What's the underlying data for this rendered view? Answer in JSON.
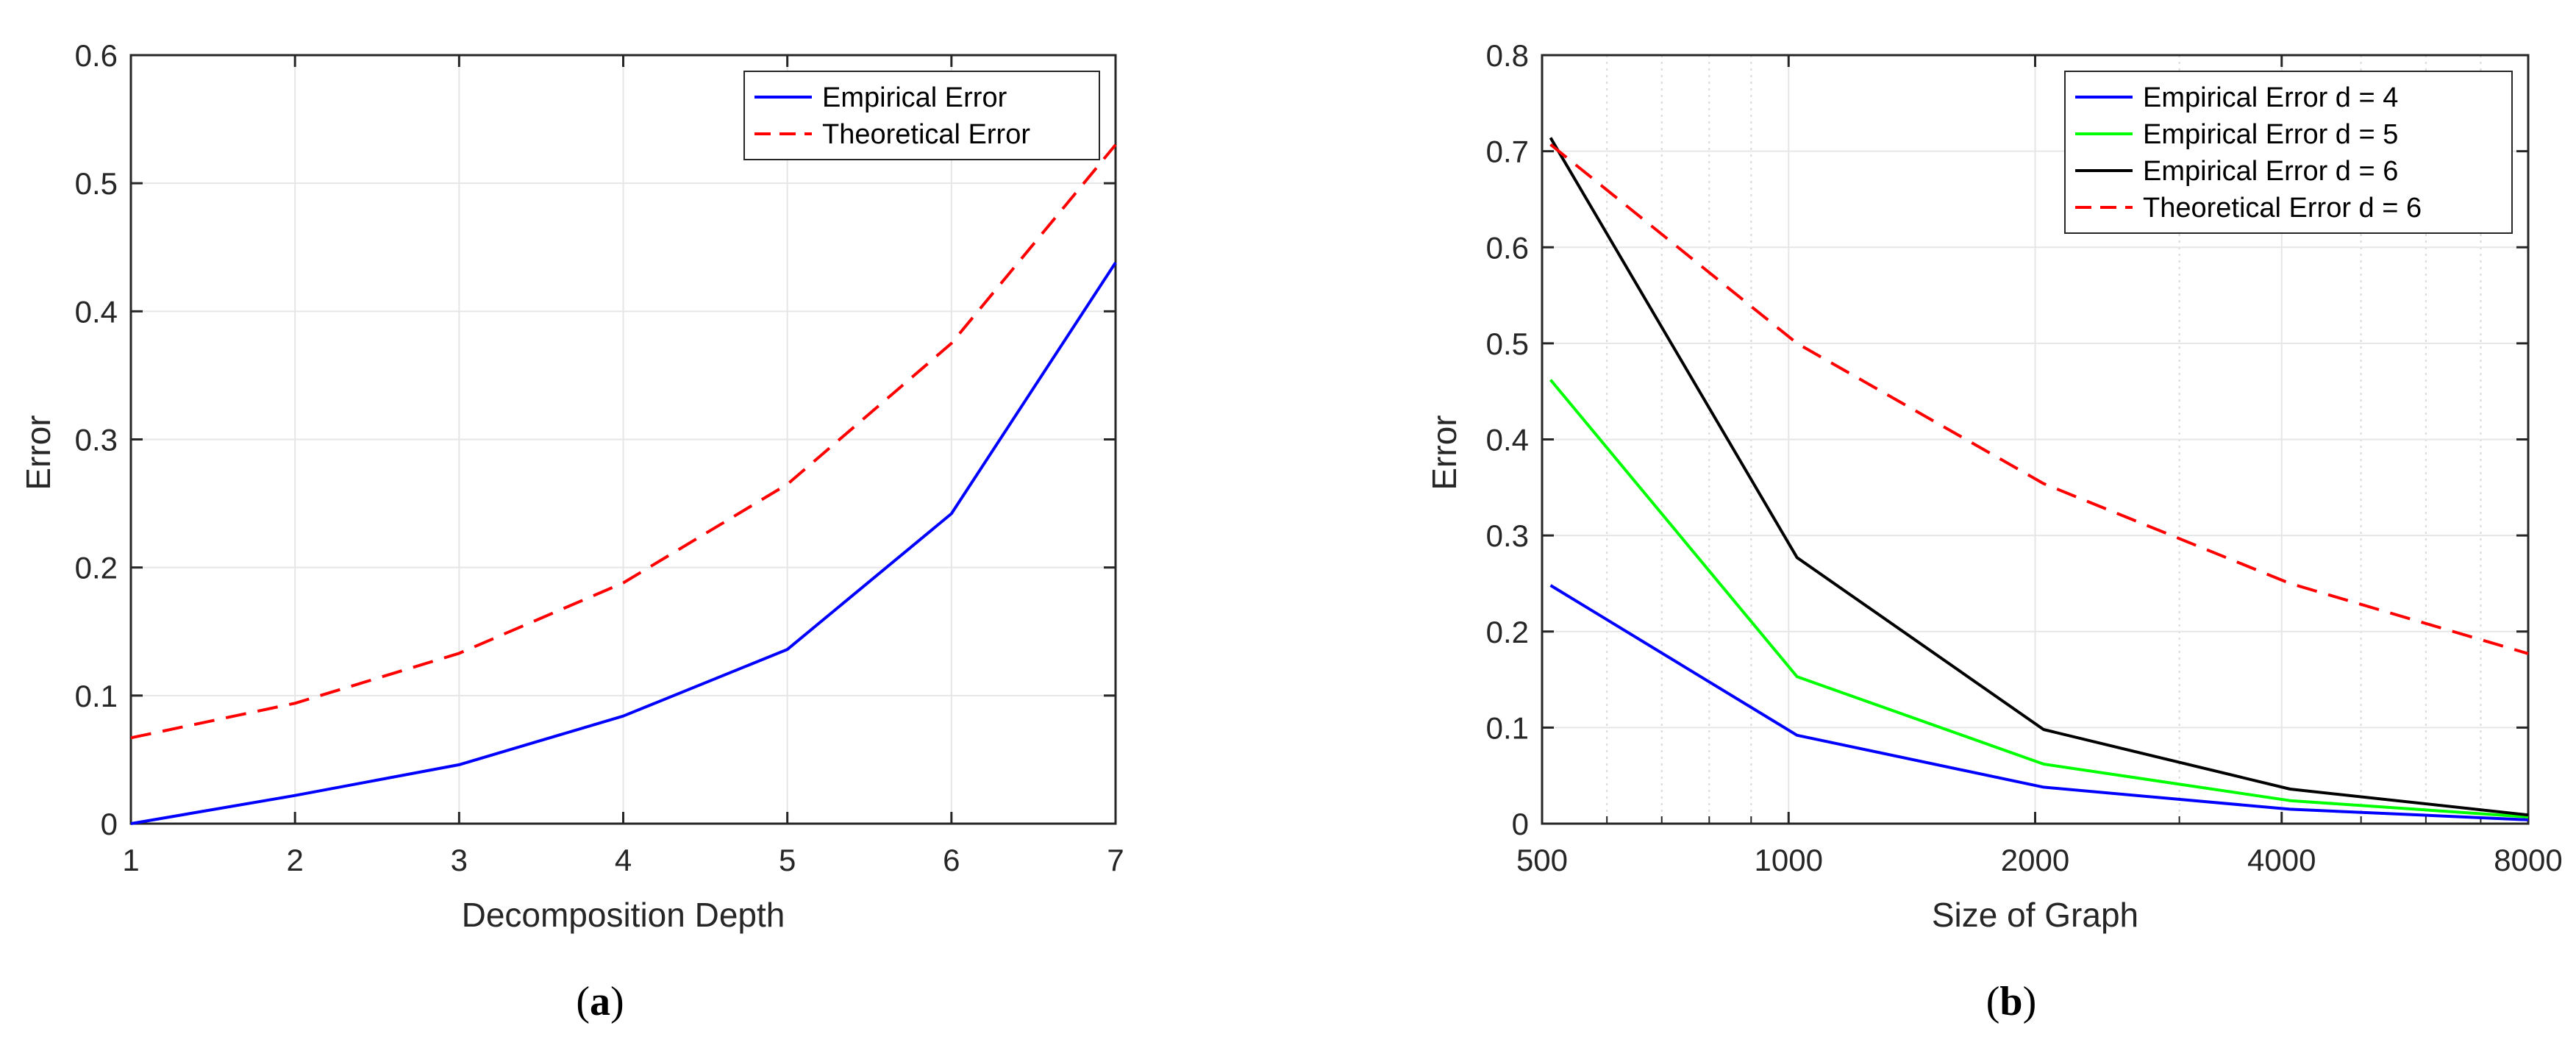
{
  "chart_data": [
    {
      "type": "line",
      "caption": {
        "open": "(",
        "letter": "a",
        "close": ")"
      },
      "xlabel": "Decomposition Depth",
      "ylabel": "Error",
      "xscale": "linear",
      "xlim": [
        1,
        7
      ],
      "ylim": [
        0,
        0.6
      ],
      "xticks": [
        1,
        2,
        3,
        4,
        5,
        6,
        7
      ],
      "xtick_labels": [
        "1",
        "2",
        "3",
        "4",
        "5",
        "6",
        "7"
      ],
      "yticks": [
        0,
        0.1,
        0.2,
        0.3,
        0.4,
        0.5,
        0.6
      ],
      "ytick_labels": [
        "0",
        "0.1",
        "0.2",
        "0.3",
        "0.4",
        "0.5",
        "0.6"
      ],
      "grid": true,
      "legend_position": "top-right",
      "series": [
        {
          "name": "Empirical Error",
          "color": "#0000ff",
          "dash": "solid",
          "x": [
            1,
            2,
            3,
            4,
            5,
            6,
            7
          ],
          "values": [
            0.0,
            0.022,
            0.046,
            0.084,
            0.136,
            0.242,
            0.438
          ]
        },
        {
          "name": "Theoretical Error",
          "color": "#ff0000",
          "dash": "dashed",
          "x": [
            1,
            2,
            3,
            4,
            5,
            6,
            7
          ],
          "values": [
            0.067,
            0.094,
            0.133,
            0.188,
            0.265,
            0.375,
            0.53
          ]
        }
      ]
    },
    {
      "type": "line",
      "caption": {
        "open": "(",
        "letter": "b",
        "close": ")"
      },
      "xlabel": "Size of Graph",
      "ylabel": "Error",
      "xscale": "log2",
      "xlim": [
        500,
        8000
      ],
      "ylim": [
        0,
        0.8
      ],
      "xticks": [
        500,
        1000,
        2000,
        4000,
        8000
      ],
      "xtick_labels": [
        "500",
        "1000",
        "2000",
        "4000",
        "8000"
      ],
      "minor_xticks": [
        600,
        700,
        800,
        900,
        3000,
        5000,
        6000,
        7000
      ],
      "yticks": [
        0,
        0.1,
        0.2,
        0.3,
        0.4,
        0.5,
        0.6,
        0.7,
        0.8
      ],
      "ytick_labels": [
        "0",
        "0.1",
        "0.2",
        "0.3",
        "0.4",
        "0.5",
        "0.6",
        "0.7",
        "0.8"
      ],
      "grid": true,
      "legend_position": "top-right",
      "series": [
        {
          "name": "Empirical Error d = 4",
          "color": "#0000ff",
          "dash": "solid",
          "x": [
            512,
            1024,
            2048,
            4096,
            8000
          ],
          "values": [
            0.248,
            0.092,
            0.038,
            0.015,
            0.004
          ]
        },
        {
          "name": "Empirical Error d = 5",
          "color": "#00ff00",
          "dash": "solid",
          "x": [
            512,
            1024,
            2048,
            4096,
            8000
          ],
          "values": [
            0.462,
            0.153,
            0.062,
            0.024,
            0.007
          ]
        },
        {
          "name": "Empirical Error d = 6",
          "color": "#000000",
          "dash": "solid",
          "x": [
            512,
            1024,
            2048,
            4096,
            8000
          ],
          "values": [
            0.714,
            0.277,
            0.098,
            0.036,
            0.009
          ]
        },
        {
          "name": "Theoretical Error d = 6",
          "color": "#ff0000",
          "dash": "dashed",
          "x": [
            512,
            1024,
            2048,
            4096,
            8000
          ],
          "values": [
            0.707,
            0.5,
            0.354,
            0.25,
            0.177
          ]
        }
      ]
    }
  ]
}
